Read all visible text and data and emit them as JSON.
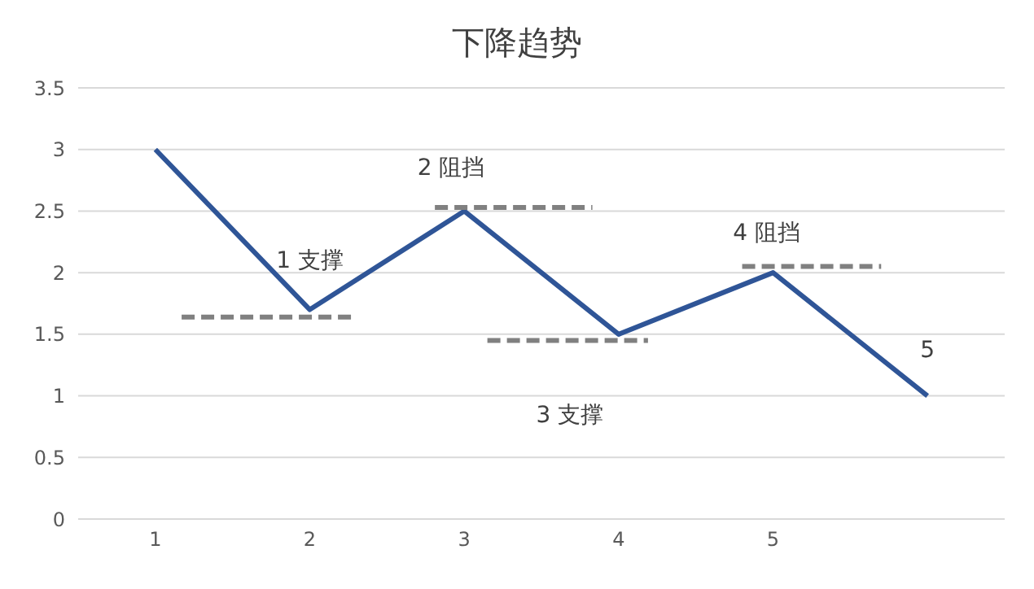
{
  "chart_data": {
    "type": "line",
    "title": "下降趋势",
    "x": [
      1,
      2,
      3,
      4,
      5,
      6
    ],
    "xlim": [
      0.5,
      6.5
    ],
    "xticks": [
      1,
      2,
      3,
      4,
      5
    ],
    "ylim": [
      0,
      3.5
    ],
    "yticks": [
      0,
      0.5,
      1,
      1.5,
      2,
      2.5,
      3,
      3.5
    ],
    "grid": "y",
    "marker": "none",
    "series": [
      {
        "color": "#2f5597",
        "values": [
          3,
          1.7,
          2.5,
          1.5,
          2,
          1
        ]
      },
      {
        "color": "#808080",
        "line_style": "dashed",
        "x": [
          1.17,
          2.27
        ],
        "values": [
          1.64,
          1.64
        ]
      },
      {
        "color": "#808080",
        "line_style": "dashed",
        "x": [
          2.81,
          3.83
        ],
        "values": [
          2.53,
          2.53
        ]
      },
      {
        "color": "#808080",
        "line_style": "dashed",
        "x": [
          3.15,
          4.19
        ],
        "values": [
          1.45,
          1.45
        ]
      },
      {
        "color": "#808080",
        "line_style": "dashed",
        "x": [
          4.8,
          5.7
        ],
        "values": [
          2.05,
          2.05
        ]
      }
    ],
    "annotations": [
      "1 支撑",
      "2 阻挡",
      "3 支撑",
      "4 阻挡",
      "5"
    ]
  }
}
